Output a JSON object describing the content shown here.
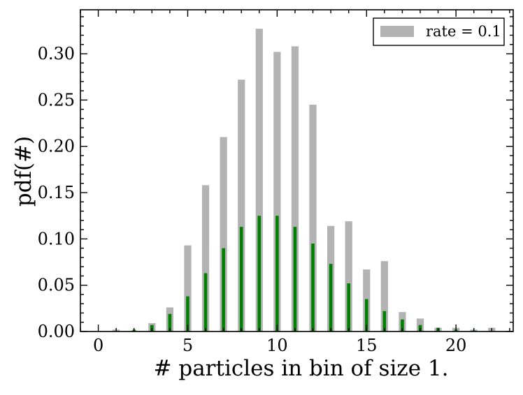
{
  "chart_data": {
    "type": "bar",
    "xlabel": "# particles in bin of size 1.",
    "ylabel": "pdf(#)",
    "xlim": [
      -1,
      23.2
    ],
    "ylim": [
      0,
      0.3475
    ],
    "x_ticks": [
      0,
      5,
      10,
      15,
      20
    ],
    "x_tick_labels": [
      "0",
      "5",
      "10",
      "15",
      "20"
    ],
    "y_ticks": [
      0,
      0.05,
      0.1,
      0.15,
      0.2,
      0.25,
      0.3
    ],
    "y_tick_labels": [
      "0.00",
      "0.05",
      "0.10",
      "0.15",
      "0.20",
      "0.25",
      "0.30"
    ],
    "legend": {
      "position": "top-right",
      "entries": [
        {
          "label": "rate = 0.1",
          "color": "#b3b3b3"
        }
      ]
    },
    "series": [
      {
        "name": "rate = 0.1",
        "color": "#b3b3b3",
        "x": [
          1,
          2,
          3,
          4,
          5,
          6,
          7,
          8,
          9,
          10,
          11,
          12,
          13,
          14,
          15,
          16,
          17,
          18,
          19,
          20,
          21,
          22
        ],
        "values": [
          0.002,
          0.001,
          0.009,
          0.026,
          0.093,
          0.158,
          0.21,
          0.272,
          0.327,
          0.302,
          0.308,
          0.245,
          0.114,
          0.119,
          0.067,
          0.076,
          0.021,
          0.014,
          0.004,
          0.004,
          0.002,
          0.004
        ]
      },
      {
        "color": "#008000",
        "x": [
          1,
          2,
          3,
          4,
          5,
          6,
          7,
          8,
          9,
          10,
          11,
          12,
          13,
          14,
          15,
          16,
          17,
          18,
          19,
          20,
          21,
          22
        ],
        "values": [
          0.0002,
          0.002,
          0.007,
          0.019,
          0.038,
          0.063,
          0.09,
          0.113,
          0.125,
          0.125,
          0.113,
          0.095,
          0.073,
          0.052,
          0.035,
          0.022,
          0.013,
          0.007,
          0.004,
          0.002,
          0.001,
          0.0005
        ]
      }
    ]
  }
}
